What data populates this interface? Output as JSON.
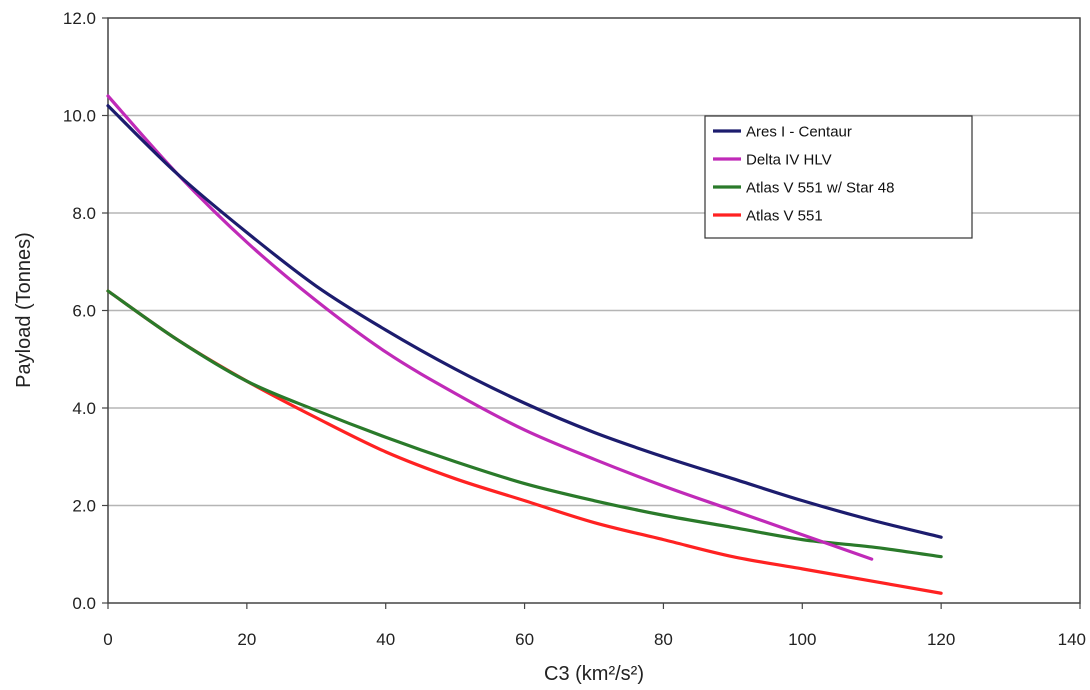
{
  "chart_data": {
    "type": "line",
    "title": "",
    "xlabel": "C3 (km²/s²)",
    "ylabel": "Payload (Tonnes)",
    "xlim": [
      0,
      140
    ],
    "ylim": [
      0,
      12
    ],
    "x_ticks": [
      "0",
      "20",
      "40",
      "60",
      "80",
      "100",
      "120",
      "140"
    ],
    "y_ticks": [
      "0.0",
      "2.0",
      "4.0",
      "6.0",
      "8.0",
      "10.0",
      "12.0"
    ],
    "grid": "horizontal",
    "legend_position": "top-right",
    "series": [
      {
        "name": "Ares I - Centaur",
        "color": "#1c1c6e",
        "x": [
          0,
          10,
          20,
          30,
          40,
          50,
          60,
          70,
          80,
          90,
          100,
          110,
          120
        ],
        "y": [
          10.2,
          8.8,
          7.6,
          6.5,
          5.6,
          4.8,
          4.1,
          3.5,
          3.0,
          2.55,
          2.1,
          1.7,
          1.35
        ]
      },
      {
        "name": "Delta IV HLV",
        "color": "#c02ab8",
        "x": [
          0,
          10,
          20,
          30,
          40,
          50,
          60,
          70,
          80,
          90,
          100,
          110
        ],
        "y": [
          10.4,
          8.8,
          7.4,
          6.2,
          5.15,
          4.3,
          3.55,
          2.95,
          2.4,
          1.9,
          1.4,
          0.9
        ]
      },
      {
        "name": "Atlas V 551 w/ Star 48",
        "color": "#2a7a2a",
        "x": [
          0,
          10,
          20,
          30,
          40,
          50,
          60,
          70,
          80,
          90,
          100,
          110,
          120
        ],
        "y": [
          6.4,
          5.4,
          4.55,
          3.95,
          3.4,
          2.9,
          2.45,
          2.1,
          1.8,
          1.55,
          1.3,
          1.15,
          0.95
        ]
      },
      {
        "name": "Atlas V 551",
        "color": "#ff2222",
        "x": [
          0,
          10,
          20,
          30,
          40,
          50,
          60,
          70,
          80,
          90,
          100,
          110,
          120
        ],
        "y": [
          6.4,
          5.4,
          4.55,
          3.8,
          3.1,
          2.55,
          2.1,
          1.65,
          1.3,
          0.95,
          0.7,
          0.45,
          0.2
        ]
      }
    ]
  }
}
